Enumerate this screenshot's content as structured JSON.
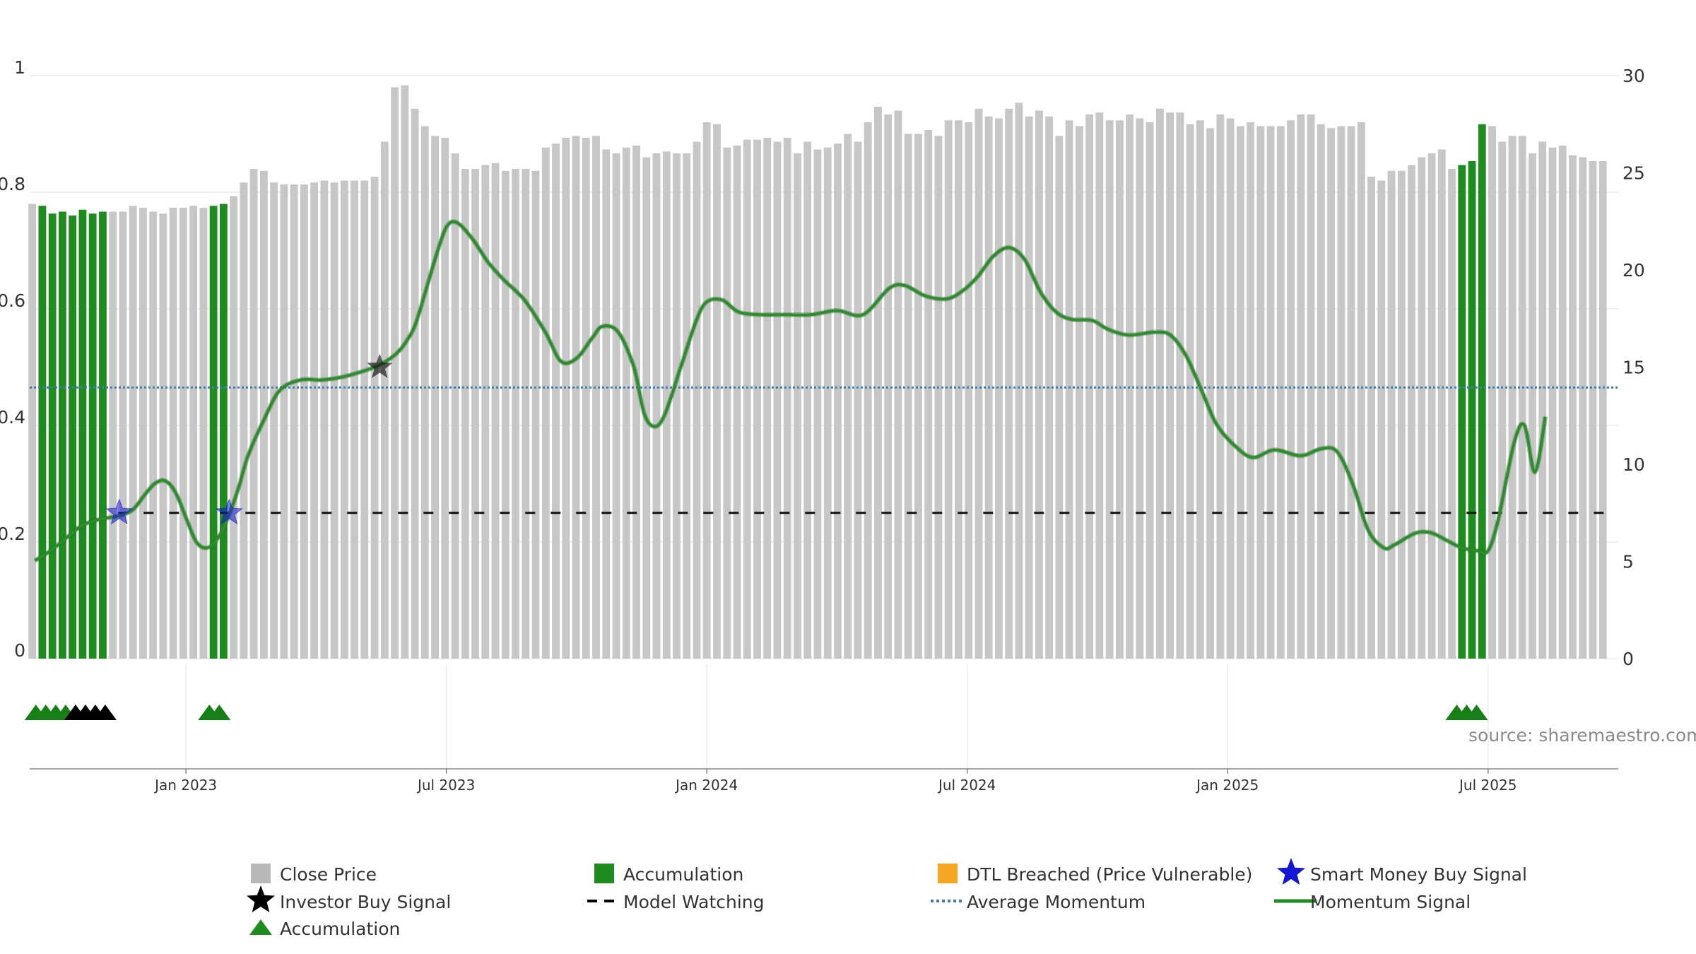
{
  "chart_data": {
    "type": "bar",
    "title": "",
    "source": "source: sharemaestro.com",
    "left_axis": {
      "range": [
        0,
        1
      ],
      "ticks": [
        0,
        0.2,
        0.4,
        0.6,
        0.8,
        1
      ],
      "tick_labels": [
        "0",
        "0.2",
        "0.4",
        "0.6",
        "0.8",
        "1"
      ]
    },
    "right_axis": {
      "range": [
        0,
        30
      ],
      "ticks": [
        0,
        5,
        10,
        15,
        20,
        25,
        30
      ],
      "tick_labels": [
        "0",
        "5",
        "10",
        "15",
        "20",
        "25",
        "30"
      ]
    },
    "x_range": [
      2022.7,
      2025.75
    ],
    "x_ticks": [
      {
        "x": 2023.0,
        "label": "Jan 2023"
      },
      {
        "x": 2023.5,
        "label": "Jul 2023"
      },
      {
        "x": 2024.0,
        "label": "Jan 2024"
      },
      {
        "x": 2024.5,
        "label": "Jul 2024"
      },
      {
        "x": 2025.0,
        "label": "Jan 2025"
      },
      {
        "x": 2025.5,
        "label": "Jul 2025"
      }
    ],
    "close_price": {
      "name": "Close Price",
      "color": "#c7c7c7",
      "start_x": 2022.705,
      "step": 0.01933,
      "values": [
        23.4,
        23.3,
        22.9,
        23.0,
        22.8,
        23.1,
        22.9,
        23.0,
        23.0,
        23.0,
        23.3,
        23.2,
        23.0,
        22.9,
        23.2,
        23.2,
        23.3,
        23.2,
        23.3,
        23.4,
        23.8,
        24.5,
        25.2,
        25.1,
        24.5,
        24.4,
        24.4,
        24.4,
        24.5,
        24.6,
        24.5,
        24.6,
        24.6,
        24.6,
        24.8,
        26.6,
        29.4,
        29.5,
        28.3,
        27.4,
        26.9,
        26.8,
        26.0,
        25.2,
        25.2,
        25.4,
        25.5,
        25.1,
        25.2,
        25.2,
        25.1,
        26.3,
        26.5,
        26.8,
        26.9,
        26.8,
        26.9,
        26.2,
        26.0,
        26.3,
        26.4,
        25.8,
        26.0,
        26.1,
        26.0,
        26.0,
        26.6,
        27.6,
        27.5,
        26.3,
        26.4,
        26.7,
        26.7,
        26.8,
        26.6,
        26.8,
        26.0,
        26.6,
        26.2,
        26.3,
        26.5,
        27.0,
        26.6,
        27.6,
        28.4,
        28.0,
        28.2,
        27.0,
        27.0,
        27.2,
        26.9,
        27.7,
        27.7,
        27.6,
        28.3,
        27.9,
        27.8,
        28.3,
        28.6,
        27.9,
        28.2,
        27.9,
        26.9,
        27.7,
        27.4,
        28.0,
        28.1,
        27.7,
        27.7,
        28.0,
        27.8,
        27.6,
        28.3,
        28.1,
        28.1,
        27.5,
        27.7,
        27.3,
        28.0,
        27.8,
        27.4,
        27.6,
        27.4,
        27.4,
        27.4,
        27.7,
        28.0,
        28.0,
        27.5,
        27.3,
        27.4,
        27.4,
        27.6,
        24.8,
        24.6,
        25.1,
        25.1,
        25.4,
        25.8,
        26.0,
        26.2,
        25.2,
        25.4,
        25.6,
        27.5,
        27.4,
        26.6,
        26.9,
        26.9,
        26.0,
        26.6,
        26.3,
        26.4,
        25.9,
        25.8,
        25.6,
        25.6
      ],
      "accumulation_indices": [
        1,
        2,
        3,
        4,
        5,
        6,
        7,
        18,
        19,
        142,
        143,
        144
      ],
      "accumulation_color": "#1e8c1e"
    },
    "momentum_signal": {
      "name": "Momentum Signal",
      "color": "#2e8b2e",
      "points": [
        [
          2022.71,
          0.168
        ],
        [
          2022.74,
          0.185
        ],
        [
          2022.77,
          0.207
        ],
        [
          2022.8,
          0.228
        ],
        [
          2022.83,
          0.238
        ],
        [
          2022.86,
          0.243
        ],
        [
          2022.88,
          0.247
        ],
        [
          2022.9,
          0.257
        ],
        [
          2022.92,
          0.28
        ],
        [
          2022.94,
          0.3
        ],
        [
          2022.96,
          0.305
        ],
        [
          2022.98,
          0.285
        ],
        [
          2023.0,
          0.242
        ],
        [
          2023.02,
          0.2
        ],
        [
          2023.04,
          0.19
        ],
        [
          2023.06,
          0.205
        ],
        [
          2023.08,
          0.24
        ],
        [
          2023.1,
          0.29
        ],
        [
          2023.12,
          0.35
        ],
        [
          2023.15,
          0.41
        ],
        [
          2023.18,
          0.46
        ],
        [
          2023.22,
          0.478
        ],
        [
          2023.26,
          0.478
        ],
        [
          2023.3,
          0.483
        ],
        [
          2023.34,
          0.493
        ],
        [
          2023.37,
          0.503
        ],
        [
          2023.4,
          0.52
        ],
        [
          2023.42,
          0.54
        ],
        [
          2023.44,
          0.572
        ],
        [
          2023.46,
          0.63
        ],
        [
          2023.48,
          0.69
        ],
        [
          2023.5,
          0.74
        ],
        [
          2023.52,
          0.748
        ],
        [
          2023.55,
          0.72
        ],
        [
          2023.58,
          0.68
        ],
        [
          2023.61,
          0.65
        ],
        [
          2023.65,
          0.615
        ],
        [
          2023.69,
          0.56
        ],
        [
          2023.72,
          0.51
        ],
        [
          2023.75,
          0.515
        ],
        [
          2023.78,
          0.55
        ],
        [
          2023.8,
          0.57
        ],
        [
          2023.83,
          0.56
        ],
        [
          2023.86,
          0.5
        ],
        [
          2023.88,
          0.42
        ],
        [
          2023.9,
          0.398
        ],
        [
          2023.92,
          0.42
        ],
        [
          2023.95,
          0.5
        ],
        [
          2023.98,
          0.58
        ],
        [
          2024.0,
          0.612
        ],
        [
          2024.03,
          0.615
        ],
        [
          2024.06,
          0.595
        ],
        [
          2024.1,
          0.59
        ],
        [
          2024.15,
          0.59
        ],
        [
          2024.2,
          0.59
        ],
        [
          2024.25,
          0.597
        ],
        [
          2024.3,
          0.59
        ],
        [
          2024.35,
          0.635
        ],
        [
          2024.38,
          0.64
        ],
        [
          2024.42,
          0.622
        ],
        [
          2024.46,
          0.617
        ],
        [
          2024.49,
          0.63
        ],
        [
          2024.52,
          0.655
        ],
        [
          2024.55,
          0.69
        ],
        [
          2024.58,
          0.705
        ],
        [
          2024.61,
          0.685
        ],
        [
          2024.64,
          0.63
        ],
        [
          2024.67,
          0.595
        ],
        [
          2024.7,
          0.582
        ],
        [
          2024.74,
          0.58
        ],
        [
          2024.77,
          0.565
        ],
        [
          2024.81,
          0.555
        ],
        [
          2024.86,
          0.56
        ],
        [
          2024.89,
          0.555
        ],
        [
          2024.92,
          0.52
        ],
        [
          2024.95,
          0.46
        ],
        [
          2024.98,
          0.4
        ],
        [
          2025.02,
          0.36
        ],
        [
          2025.05,
          0.345
        ],
        [
          2025.09,
          0.358
        ],
        [
          2025.14,
          0.348
        ],
        [
          2025.18,
          0.36
        ],
        [
          2025.21,
          0.355
        ],
        [
          2025.24,
          0.3
        ],
        [
          2025.27,
          0.22
        ],
        [
          2025.3,
          0.19
        ],
        [
          2025.32,
          0.195
        ],
        [
          2025.36,
          0.215
        ],
        [
          2025.39,
          0.216
        ],
        [
          2025.42,
          0.203
        ],
        [
          2025.45,
          0.19
        ],
        [
          2025.48,
          0.185
        ],
        [
          2025.5,
          0.185
        ],
        [
          2025.52,
          0.24
        ],
        [
          2025.55,
          0.37
        ],
        [
          2025.57,
          0.4
        ],
        [
          2025.59,
          0.32
        ],
        [
          2025.61,
          0.415
        ]
      ]
    },
    "average_momentum": {
      "name": "Average Momentum",
      "value": 0.465,
      "color": "#3d7fb5"
    },
    "model_watching": {
      "name": "Model Watching",
      "value": 0.25,
      "x_from": 2022.87,
      "color": "#111111"
    },
    "smart_money_buy_signals": {
      "name": "Smart Money Buy Signal",
      "color": "#1515d4",
      "points": [
        [
          2022.872,
          0.25
        ],
        [
          2023.083,
          0.25
        ]
      ]
    },
    "investor_buy_signals": {
      "name": "Investor Buy Signal",
      "color": "#111111",
      "points": [
        [
          2023.372,
          0.5
        ]
      ]
    },
    "accumulation_markers": {
      "name": "Accumulation",
      "green": [
        2022.712,
        2022.731,
        2022.75,
        2022.769,
        2023.045,
        2023.064,
        2025.44,
        2025.459,
        2025.478
      ],
      "black": [
        2022.788,
        2022.807,
        2022.826,
        2022.845
      ]
    },
    "legend": [
      {
        "label": "Close Price",
        "symbol": "square",
        "color": "#b9b9b9"
      },
      {
        "label": "Accumulation",
        "symbol": "square",
        "color": "#1e8c1e"
      },
      {
        "label": "DTL Breached (Price Vulnerable)",
        "symbol": "square",
        "color": "#f5a623"
      },
      {
        "label": "Smart Money Buy Signal",
        "symbol": "star",
        "color": "#1515d4"
      },
      {
        "label": "Investor Buy Signal",
        "symbol": "star",
        "color": "#000000"
      },
      {
        "label": "Model Watching",
        "symbol": "dash",
        "color": "#000000"
      },
      {
        "label": "Average Momentum",
        "symbol": "dot",
        "color": "#3d7fb5"
      },
      {
        "label": "Momentum Signal",
        "symbol": "line",
        "color": "#1e8c1e"
      },
      {
        "label": "Accumulation",
        "symbol": "triangle",
        "color": "#1e8c1e"
      }
    ]
  }
}
